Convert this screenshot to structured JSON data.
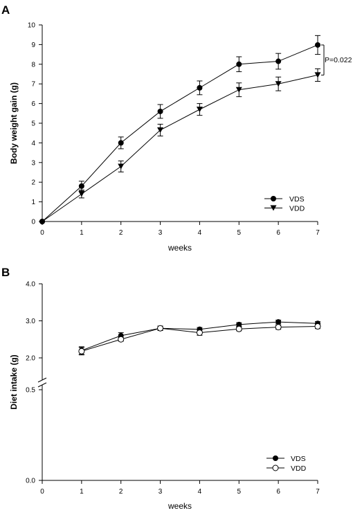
{
  "chart_data": [
    {
      "panel": "A",
      "type": "line",
      "ylabel": "Body weight gain (g)",
      "xlabel": "weeks",
      "xlim": [
        0,
        7
      ],
      "ylim": [
        0,
        10
      ],
      "x": [
        0,
        1,
        2,
        3,
        4,
        5,
        6,
        7
      ],
      "yticks": [
        0,
        1,
        2,
        3,
        4,
        5,
        6,
        7,
        8,
        9,
        10
      ],
      "xticks": [
        0,
        1,
        2,
        3,
        4,
        5,
        6,
        7
      ],
      "series": [
        {
          "name": "VDS",
          "marker": "circle-filled",
          "values": [
            0,
            1.8,
            4.0,
            5.6,
            6.8,
            8.0,
            8.15,
            8.98
          ],
          "errors": [
            0,
            0.25,
            0.3,
            0.35,
            0.35,
            0.38,
            0.4,
            0.48
          ]
        },
        {
          "name": "VDD",
          "marker": "triangle-down-filled",
          "values": [
            0,
            1.4,
            2.8,
            4.65,
            5.7,
            6.7,
            7.0,
            7.45
          ],
          "errors": [
            0,
            0.2,
            0.28,
            0.3,
            0.3,
            0.35,
            0.35,
            0.32
          ]
        }
      ],
      "annotation": {
        "text": "P=0.022",
        "x": 7,
        "y_from": 7.45,
        "y_to": 8.98
      },
      "legend_position": "bottom-right"
    },
    {
      "panel": "B",
      "type": "line",
      "ylabel": "Diet intake (g)",
      "xlabel": "weeks",
      "xlim": [
        0,
        7
      ],
      "axis_break": true,
      "yticks": [
        "4.0",
        "3.0",
        "2.0",
        "0.5",
        "0.0"
      ],
      "xticks": [
        0,
        1,
        2,
        3,
        4,
        5,
        6,
        7
      ],
      "x": [
        1,
        2,
        3,
        4,
        5,
        6,
        7
      ],
      "series": [
        {
          "name": "VDS",
          "marker": "circle-filled",
          "values": [
            2.2,
            2.6,
            2.8,
            2.77,
            2.9,
            2.97,
            2.93
          ],
          "errors": [
            0.1,
            0.08,
            0.06,
            0.05,
            0.05,
            0.05,
            0.05
          ]
        },
        {
          "name": "VDD",
          "marker": "circle-open",
          "values": [
            2.18,
            2.5,
            2.8,
            2.68,
            2.78,
            2.83,
            2.85
          ],
          "errors": [
            0.1,
            0.05,
            0.06,
            0.07,
            0.05,
            0.06,
            0.06
          ]
        }
      ],
      "legend_position": "bottom-right"
    }
  ]
}
